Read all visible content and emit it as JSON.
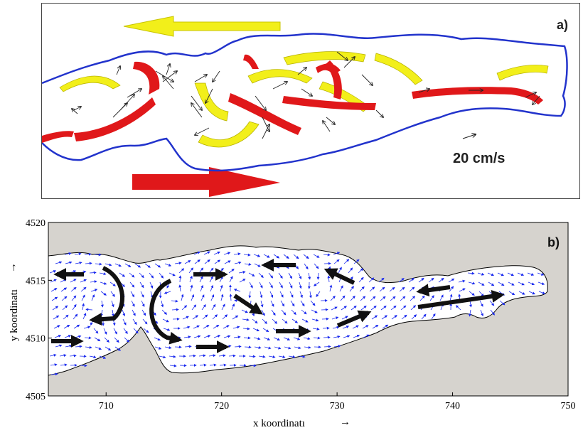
{
  "panel_a": {
    "label": "a)",
    "scale_text": "20 cm/s",
    "colors": {
      "boundary": "#2233cc",
      "flow_west": "#f2ef1a",
      "flow_east": "#e0181a",
      "vectors": "#222222"
    }
  },
  "panel_b": {
    "label": "b)",
    "colors": {
      "land": "#d6d3ce",
      "water": "#ffffff",
      "vectors": "#1a2aee",
      "main_arrows": "#111111"
    }
  },
  "chart_data": {
    "type": "diagram",
    "xlabel": "x koordinatı",
    "ylabel": "y koordinatı",
    "xlabel_arrow": "→",
    "ylabel_arrow": "→",
    "xlim": [
      705,
      750
    ],
    "ylim": [
      4505,
      4520
    ],
    "xticks": [
      "710",
      "720",
      "730",
      "740",
      "750"
    ],
    "yticks": [
      "4505",
      "4510",
      "4515",
      "4520"
    ]
  }
}
